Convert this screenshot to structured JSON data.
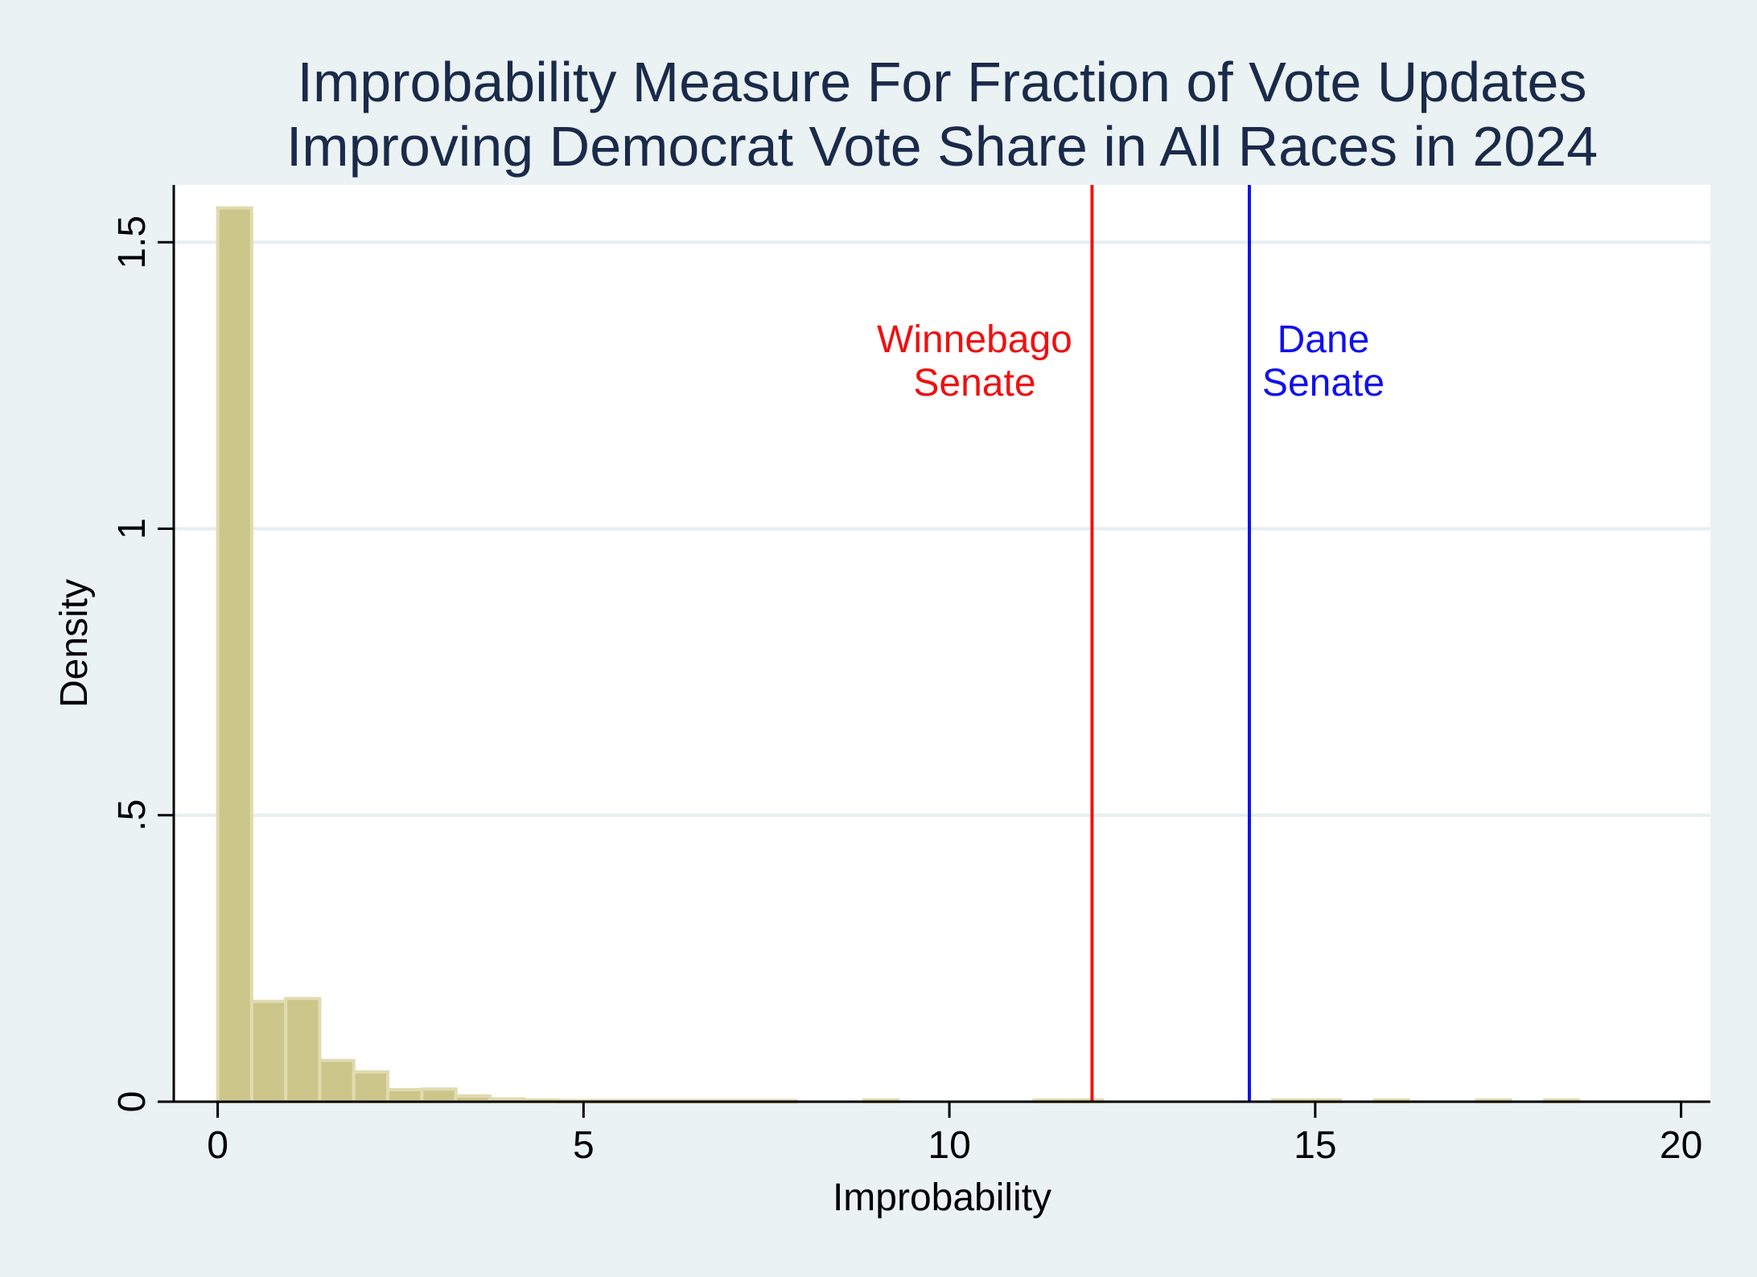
{
  "chart_data": {
    "type": "bar",
    "title": "Improbability Measure For Fraction of Vote Updates",
    "subtitle": "Improving Democrat Vote Share in All Races in 2024",
    "xlabel": "Improbability",
    "ylabel": "Density",
    "xlim": [
      -0.6,
      20.4
    ],
    "ylim": [
      0,
      1.6
    ],
    "x_ticks": [
      0,
      5,
      10,
      15,
      20
    ],
    "x_tick_labels": [
      "0",
      "5",
      "10",
      "15",
      "20"
    ],
    "y_ticks": [
      0,
      0.5,
      1,
      1.5
    ],
    "y_tick_labels": [
      "0",
      ".5",
      "1",
      "1.5"
    ],
    "grid": "horizontal",
    "bin_width": 0.465,
    "bin_starts": [
      0,
      0.465,
      0.93,
      1.395,
      1.86,
      2.325,
      2.79,
      3.255,
      3.72,
      4.185,
      4.65,
      5.115,
      5.58,
      6.045,
      6.51,
      6.975,
      7.44,
      8.835,
      11.16,
      11.625,
      14.415,
      14.88,
      15.81,
      17.205,
      18.135
    ],
    "values": [
      1.56,
      0.175,
      0.18,
      0.072,
      0.052,
      0.021,
      0.022,
      0.01,
      0.005,
      0.003,
      0.002,
      0.002,
      0.002,
      0.002,
      0.002,
      0.002,
      0.002,
      0.003,
      0.003,
      0.003,
      0.003,
      0.003,
      0.003,
      0.003,
      0.003
    ],
    "bar_color": "#cdc68a",
    "bar_edge_color": "#e0dbb0",
    "reference_lines": [
      {
        "x": 11.95,
        "label_line1": "Winnebago",
        "label_line2": "Senate",
        "color": "#ee1111",
        "label_side": "left"
      },
      {
        "x": 14.1,
        "label_line1": "Dane",
        "label_line2": "Senate",
        "color": "#1111ee",
        "label_side": "right"
      }
    ],
    "colors": {
      "background": "#eaf2f3",
      "plot_background": "#ffffff",
      "title": "#1a2a4a",
      "axis": "#000000",
      "grid": "#e6eef0"
    }
  }
}
